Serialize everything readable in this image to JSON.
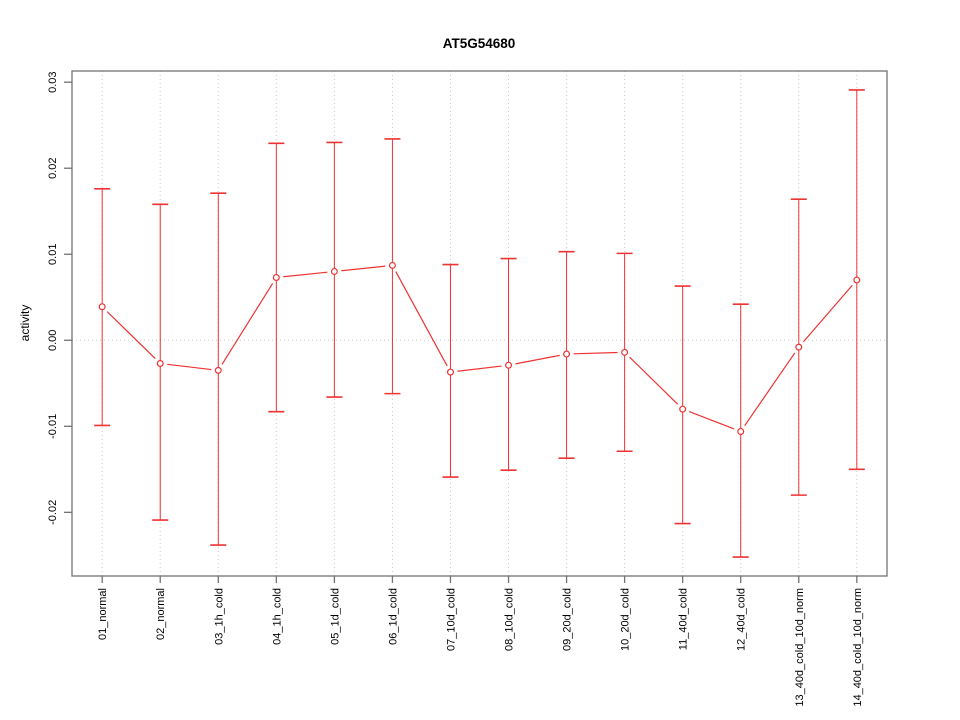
{
  "window": {
    "background": "#ffffff"
  },
  "chart_data": {
    "type": "line",
    "title": "AT5G54680",
    "xlabel": "",
    "ylabel": "activity",
    "legend_position": "none",
    "grid": {
      "vertical_dotted_per_category": true,
      "horizontal_dotted_at_zero": true
    },
    "categories": [
      "01_normal",
      "02_normal",
      "03_1h_cold",
      "04_1h_cold",
      "05_1d_cold",
      "06_1d_cold",
      "07_10d_cold",
      "08_10d_cold",
      "09_20d_cold",
      "10_20d_cold",
      "11_40d_cold",
      "12_40d_cold",
      "13_40d_cold_10d_norm",
      "14_40d_cold_10d_norm"
    ],
    "series": [
      {
        "name": "activity",
        "marker": "open-circle",
        "values": [
          0.0039,
          -0.0027,
          -0.0035,
          0.0073,
          0.008,
          0.0087,
          -0.0037,
          -0.0029,
          -0.0016,
          -0.0014,
          -0.008,
          -0.0106,
          -0.0008,
          0.007
        ],
        "upper": [
          0.0176,
          0.0158,
          0.0171,
          0.0229,
          0.023,
          0.0234,
          0.0088,
          0.0095,
          0.0103,
          0.0101,
          0.0063,
          0.0042,
          0.0164,
          0.0291
        ],
        "lower": [
          -0.0099,
          -0.0209,
          -0.0238,
          -0.0083,
          -0.0066,
          -0.0062,
          -0.0159,
          -0.0151,
          -0.0137,
          -0.0129,
          -0.0213,
          -0.0252,
          -0.018,
          -0.015
        ]
      }
    ],
    "ylim": [
      -0.0274,
      0.0313
    ],
    "y_tick_values": [
      0.03,
      0.02,
      0.01,
      0.0,
      -0.01,
      -0.02
    ],
    "y_tick_labels": [
      "0.03",
      "0.02",
      "0.01",
      "0.00",
      "-0.01",
      "-0.02"
    ],
    "colors": {
      "series": "#ee3333",
      "grid": "#c9c9c9",
      "box": "#737373",
      "text": "#000000"
    }
  }
}
